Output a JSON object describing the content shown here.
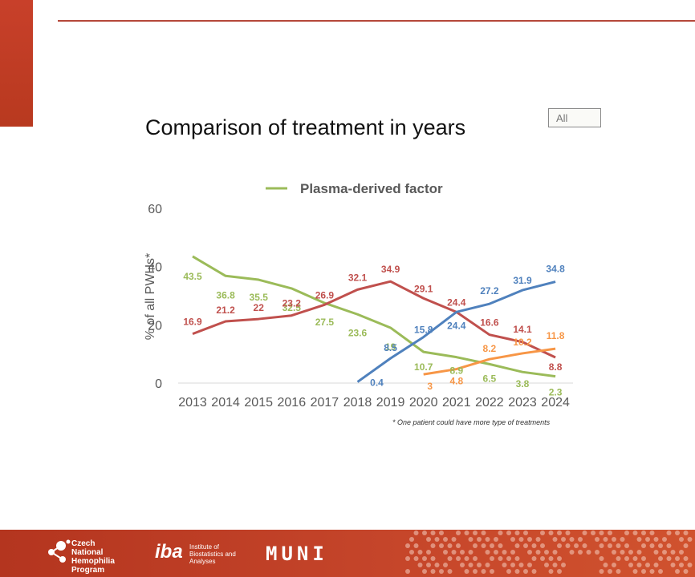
{
  "title": "Comparison of treatment in years",
  "filter": {
    "value": "All"
  },
  "legend_label": "Plasma-derived factor",
  "footnote": "* One patient could have more type of treatments",
  "footer": {
    "cnhp_text": "Czech National Hemophilia Program",
    "iba_mark": "iba",
    "iba_text": "Institute of Biostatistics and Analyses",
    "muni_text": "MUNI"
  },
  "colors": {
    "accent": "#c8402a",
    "green": "#9bbb59",
    "red": "#c0504d",
    "blue": "#4f81bd",
    "orange": "#f79646"
  },
  "chart_data": {
    "type": "line",
    "ylabel": "% of all PWHs*",
    "ylim": [
      0,
      60
    ],
    "yticks": [
      0,
      20,
      40,
      60
    ],
    "x": [
      "2013",
      "2014",
      "2015",
      "2016",
      "2017",
      "2018",
      "2019",
      "2020",
      "2021",
      "2022",
      "2023",
      "2024"
    ],
    "legend": "top-center",
    "grid": false,
    "series": [
      {
        "name": "Plasma-derived factor",
        "color": "#9bbb59",
        "values": [
          43.5,
          36.8,
          35.5,
          32.5,
          27.5,
          23.6,
          19,
          10.7,
          8.9,
          6.5,
          3.8,
          2.3
        ]
      },
      {
        "color": "#c0504d",
        "values": [
          16.9,
          21.2,
          22,
          23.2,
          26.9,
          32.1,
          34.9,
          29.1,
          24.4,
          16.6,
          14.1,
          8.8
        ]
      },
      {
        "color": "#4f81bd",
        "values": [
          null,
          null,
          null,
          null,
          null,
          0.4,
          8.5,
          15.8,
          24.4,
          27.2,
          31.9,
          34.8
        ]
      },
      {
        "color": "#f79646",
        "values": [
          null,
          null,
          null,
          null,
          null,
          null,
          null,
          3,
          4.8,
          8.2,
          10.2,
          11.8
        ]
      }
    ]
  }
}
